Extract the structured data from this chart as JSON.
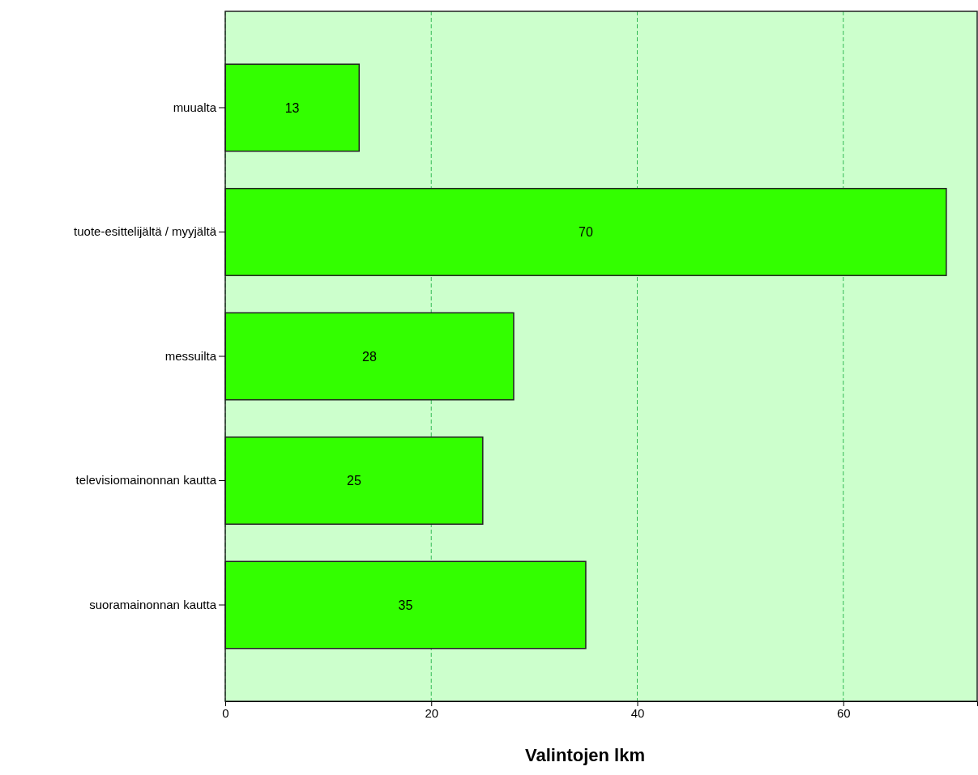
{
  "chart_data": {
    "type": "bar",
    "orientation": "horizontal",
    "xlabel": "Valintojen lkm",
    "categories": [
      "muualta",
      "tuote-esittelijältä / myyjältä",
      "messuilta",
      "televisiomainonnan kautta",
      "suoramainonnan kautta"
    ],
    "values": [
      13,
      70,
      28,
      25,
      35
    ],
    "color": "#33ff00",
    "xlim": [
      0,
      73
    ],
    "xticks": [
      0,
      20,
      40,
      60
    ],
    "grid": "x",
    "data_labels": true
  }
}
